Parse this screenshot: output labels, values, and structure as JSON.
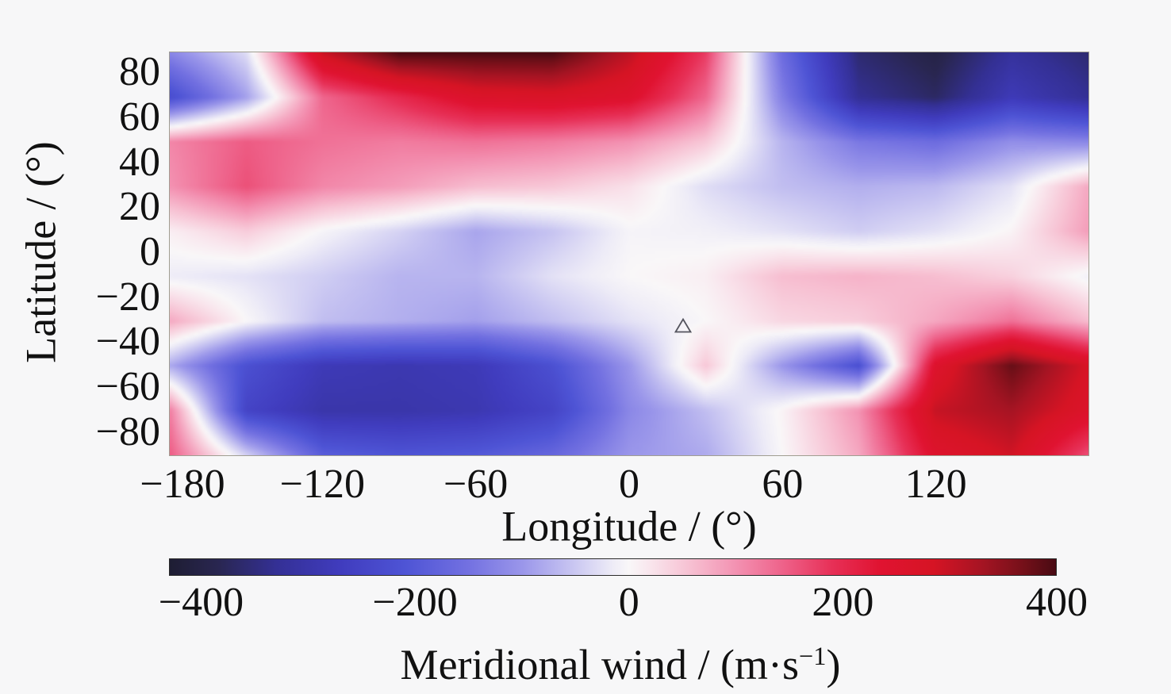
{
  "figure": {
    "background": "#f7f7f8",
    "text_color": "#111111"
  },
  "axes": {
    "ylabel": "Latitude / (°)",
    "xlabel": "Longitude / (°)",
    "ytick_labels": [
      "80",
      "60",
      "40",
      "20",
      "0",
      "−20",
      "−40",
      "−60",
      "−80"
    ],
    "ytick_values": [
      80,
      60,
      40,
      20,
      0,
      -20,
      -40,
      -60,
      -80
    ],
    "xtick_labels": [
      "−180",
      "−120",
      "−60",
      "0",
      "60",
      "120"
    ],
    "xtick_values": [
      -180,
      -120,
      -60,
      0,
      60,
      120
    ]
  },
  "colorbar": {
    "label_pre": "Meridional wind / (m·s",
    "label_sup": "−1",
    "label_post": ")",
    "tick_labels": [
      "−400",
      "−200",
      "0",
      "200",
      "400"
    ],
    "tick_values": [
      -400,
      -200,
      0,
      200,
      400
    ],
    "vmin": -430,
    "vmax": 400
  },
  "chart_data": {
    "type": "heatmap",
    "title": "",
    "xlabel": "Longitude / (°)",
    "ylabel": "Latitude / (°)",
    "colorbar_label": "Meridional wind / (m·s⁻¹)",
    "units": "m·s⁻¹",
    "xlim": [
      -180,
      180
    ],
    "ylim": [
      -90,
      90
    ],
    "clim": [
      -430,
      400
    ],
    "grid_lons": [
      -180,
      -150,
      -120,
      -90,
      -60,
      -30,
      0,
      30,
      60,
      90,
      120,
      150,
      180
    ],
    "grid_lats": [
      90,
      70,
      50,
      30,
      10,
      -10,
      -30,
      -50,
      -70,
      -90
    ],
    "values": [
      [
        -120,
        -30,
        300,
        400,
        400,
        400,
        310,
        180,
        -160,
        -360,
        -400,
        -320,
        -360
      ],
      [
        -230,
        -90,
        140,
        200,
        260,
        270,
        250,
        140,
        -130,
        -330,
        -370,
        -280,
        -330
      ],
      [
        110,
        150,
        130,
        120,
        130,
        120,
        100,
        50,
        -70,
        -140,
        -160,
        -110,
        -120
      ],
      [
        100,
        160,
        110,
        90,
        60,
        50,
        25,
        -30,
        -60,
        -75,
        -65,
        -25,
        80
      ],
      [
        10,
        45,
        -5,
        -40,
        -85,
        -55,
        -5,
        -10,
        -25,
        -45,
        -25,
        5,
        90
      ],
      [
        -15,
        -25,
        -45,
        -70,
        -70,
        -25,
        0,
        10,
        60,
        70,
        60,
        40,
        -10
      ],
      [
        80,
        0,
        -60,
        -75,
        -90,
        -60,
        -25,
        0,
        35,
        45,
        80,
        130,
        60
      ],
      [
        -80,
        -220,
        -280,
        -290,
        -280,
        -220,
        -100,
        50,
        -100,
        -220,
        250,
        380,
        280
      ],
      [
        120,
        -250,
        -300,
        -300,
        -290,
        -250,
        -120,
        -60,
        5,
        100,
        300,
        330,
        260
      ],
      [
        150,
        -40,
        -190,
        -210,
        -200,
        -170,
        -100,
        -80,
        0,
        80,
        250,
        290,
        160
      ]
    ],
    "colormap": [
      [
        -430,
        "#1e1d33"
      ],
      [
        -385,
        "#292650"
      ],
      [
        -330,
        "#343095"
      ],
      [
        -270,
        "#403cbe"
      ],
      [
        -210,
        "#4e54d5"
      ],
      [
        -150,
        "#7371e1"
      ],
      [
        -100,
        "#9a96ea"
      ],
      [
        -55,
        "#c6c3f1"
      ],
      [
        -15,
        "#eeecf7"
      ],
      [
        0,
        "#f9f7f8"
      ],
      [
        18,
        "#f9e7ee"
      ],
      [
        55,
        "#f7c3d4"
      ],
      [
        100,
        "#f392b2"
      ],
      [
        145,
        "#ee6189"
      ],
      [
        190,
        "#e73057"
      ],
      [
        235,
        "#e01331"
      ],
      [
        285,
        "#d61424"
      ],
      [
        330,
        "#a61423"
      ],
      [
        370,
        "#741019"
      ],
      [
        400,
        "#480a13"
      ]
    ],
    "marker": {
      "shape": "open-triangle",
      "lon": 21,
      "lat": -32,
      "color": "#54545e"
    }
  }
}
